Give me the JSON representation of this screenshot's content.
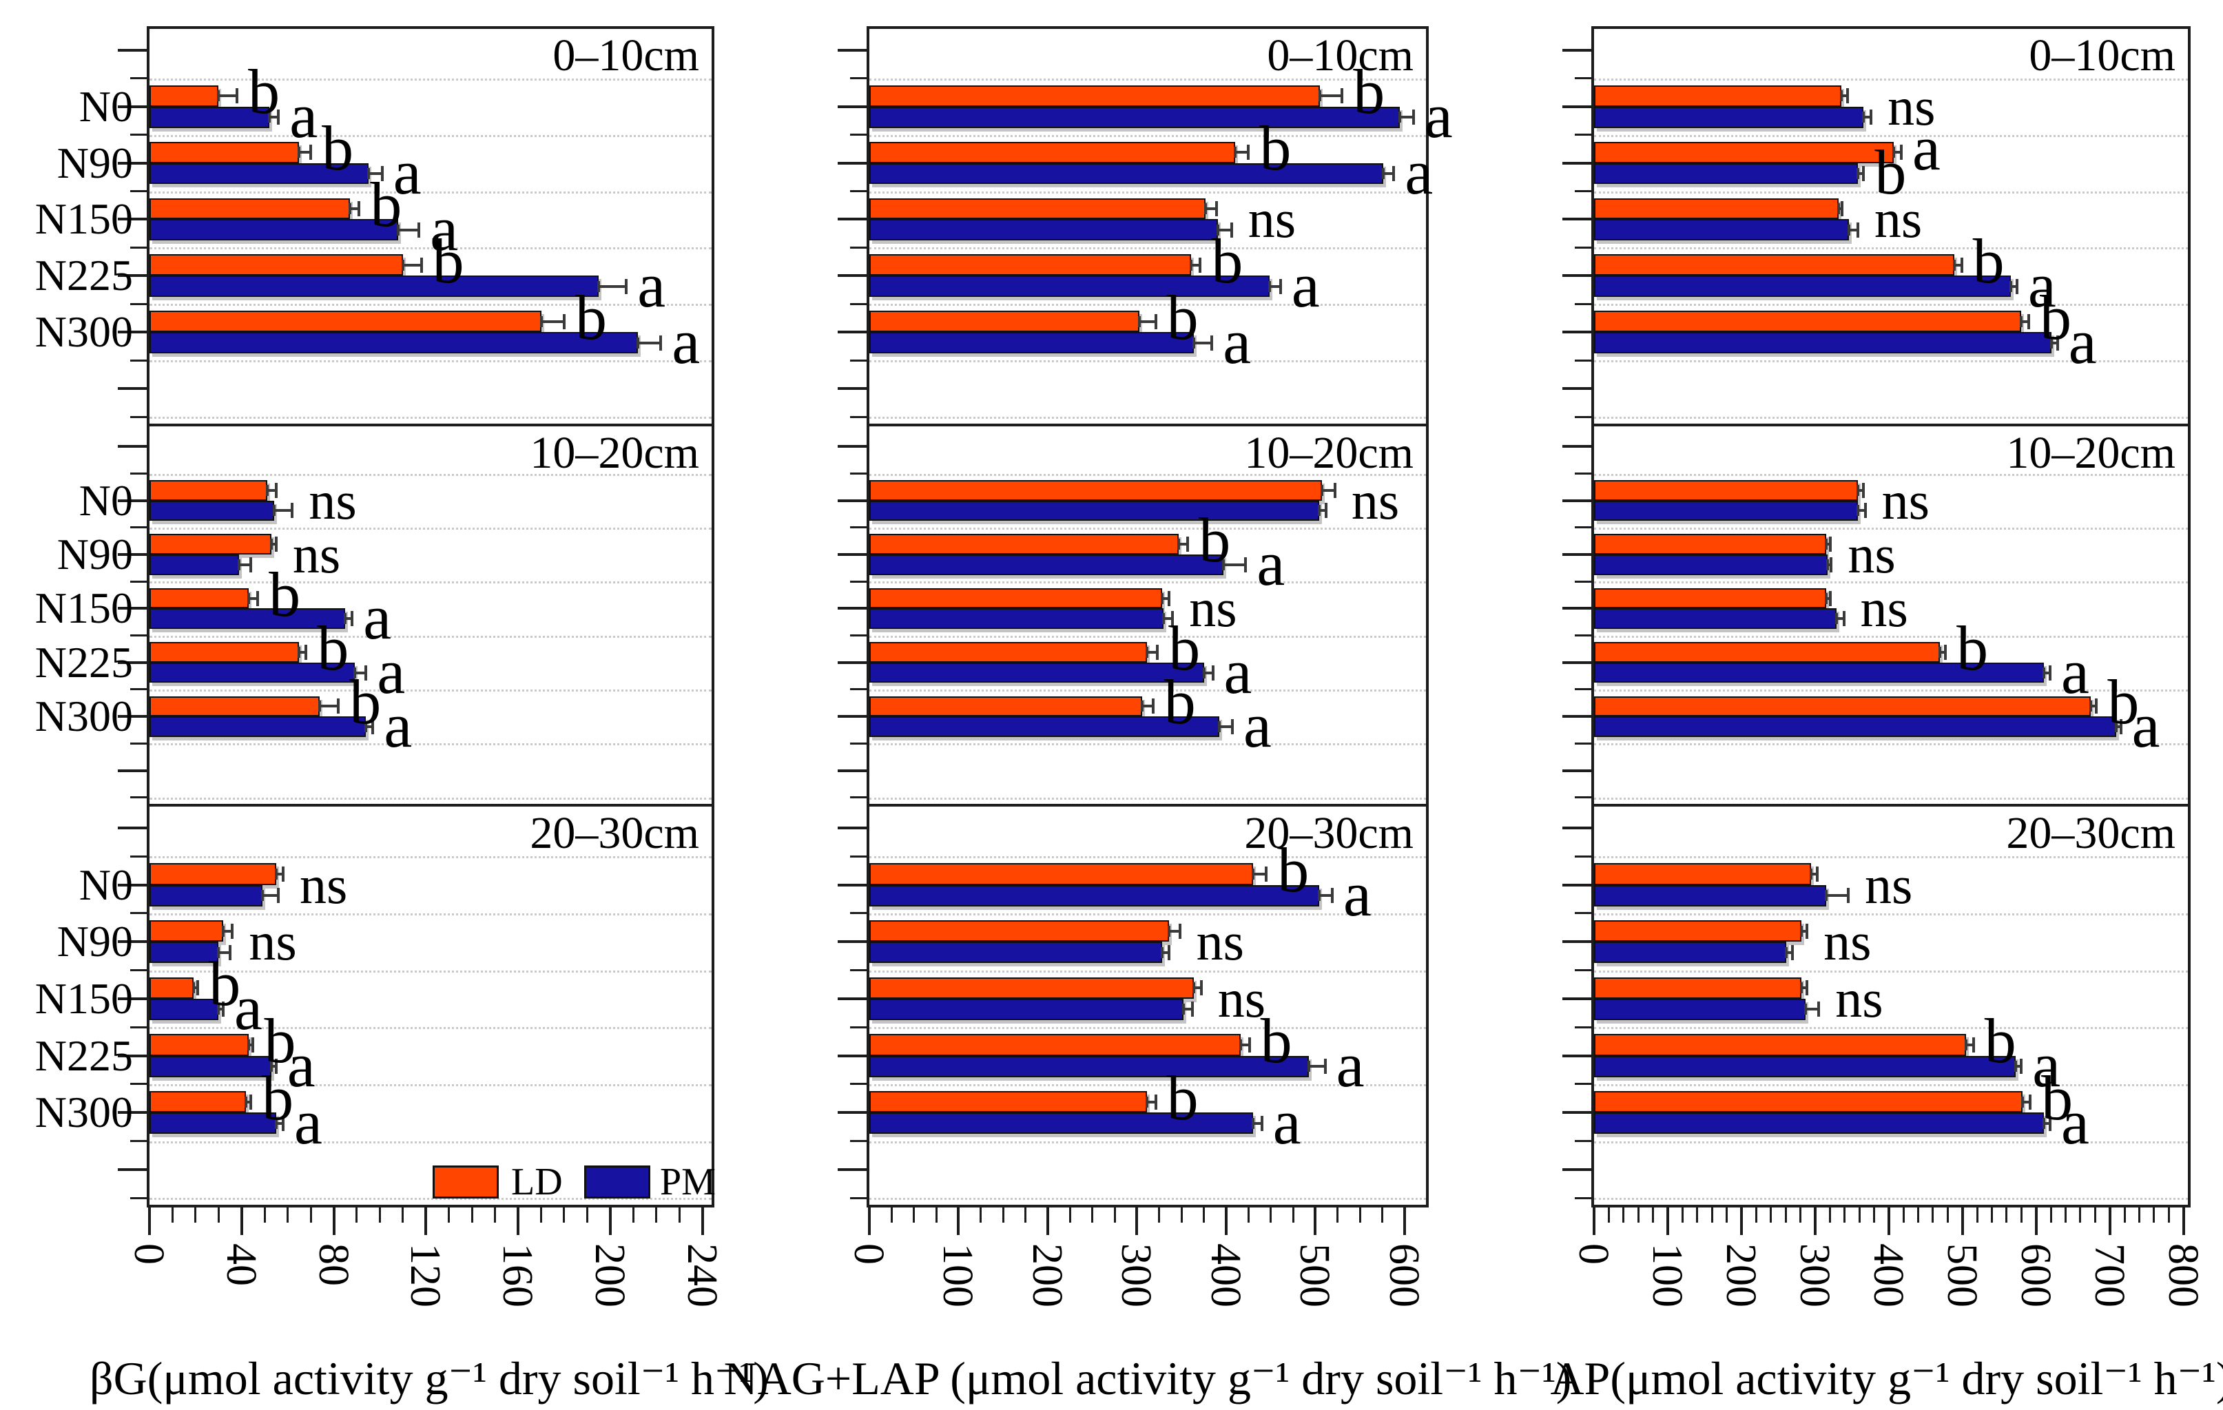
{
  "legend": {
    "items": [
      {
        "label": "LD",
        "color": "#ff4500"
      },
      {
        "label": "PM",
        "color": "#1812a0"
      }
    ]
  },
  "categories": [
    "N0",
    "N90",
    "N150",
    "N225",
    "N300"
  ],
  "depths": [
    "0–10cm",
    "10–20cm",
    "20–30cm"
  ],
  "chart_data": [
    {
      "type": "bar",
      "orientation": "horizontal",
      "enzyme": "βG",
      "xlabel": "βG(μmol activity g⁻¹ dry soil⁻¹ h⁻¹)",
      "xlim": [
        0,
        244
      ],
      "xticks": [
        0,
        40,
        80,
        120,
        160,
        200,
        240
      ],
      "minor_tick_step": 10,
      "series_names": [
        "LD",
        "PM"
      ],
      "panels": [
        {
          "depth": "0–10cm",
          "LD": [
            30,
            65,
            87,
            110,
            170
          ],
          "LD_err": [
            8,
            5,
            4,
            8,
            10
          ],
          "PM": [
            52,
            95,
            108,
            195,
            212
          ],
          "PM_err": [
            4,
            6,
            9,
            12,
            10
          ],
          "letters": [
            "ba",
            "ba",
            "ba",
            "ba",
            "ba"
          ]
        },
        {
          "depth": "10–20cm",
          "LD": [
            51,
            53,
            43,
            65,
            74
          ],
          "LD_err": [
            4,
            2,
            4,
            3,
            8
          ],
          "PM": [
            54,
            39,
            85,
            89,
            94
          ],
          "PM_err": [
            8,
            5,
            3,
            5,
            3
          ],
          "letters": [
            "ns",
            "ns",
            "ba",
            "ba",
            "ba"
          ]
        },
        {
          "depth": "20–30cm",
          "LD": [
            55,
            32,
            19,
            43,
            42
          ],
          "LD_err": [
            3,
            4,
            2,
            2,
            2
          ],
          "PM": [
            49,
            30,
            30,
            53,
            55
          ],
          "PM_err": [
            7,
            5,
            2,
            2,
            3
          ],
          "letters": [
            "ns",
            "ns",
            "ba",
            "ba",
            "ba"
          ]
        }
      ]
    },
    {
      "type": "bar",
      "orientation": "horizontal",
      "enzyme": "NAG+LAP",
      "xlabel": "NAG+LAP (μmol activity g⁻¹ dry soil⁻¹ h⁻¹)",
      "xlim": [
        0,
        624
      ],
      "xticks": [
        0,
        100,
        200,
        300,
        400,
        500,
        600
      ],
      "minor_tick_step": 25,
      "series_names": [
        "LD",
        "PM"
      ],
      "panels": [
        {
          "depth": "0–10cm",
          "LD": [
            505,
            410,
            377,
            361,
            303
          ],
          "LD_err": [
            25,
            15,
            12,
            10,
            18
          ],
          "PM": [
            595,
            576,
            391,
            449,
            364
          ],
          "PM_err": [
            15,
            12,
            15,
            12,
            20
          ],
          "letters": [
            "ba",
            "ba",
            "ns",
            "ba",
            "ba"
          ]
        },
        {
          "depth": "10–20cm",
          "LD": [
            507,
            347,
            328,
            311,
            306
          ],
          "LD_err": [
            15,
            10,
            8,
            12,
            12
          ],
          "PM": [
            504,
            397,
            330,
            375,
            392
          ],
          "PM_err": [
            8,
            25,
            10,
            10,
            15
          ],
          "letters": [
            "ns",
            "ba",
            "ns",
            "ba",
            "ba"
          ]
        },
        {
          "depth": "20–30cm",
          "LD": [
            430,
            336,
            364,
            416,
            311
          ],
          "LD_err": [
            15,
            12,
            8,
            10,
            10
          ],
          "PM": [
            504,
            328,
            352,
            493,
            430
          ],
          "PM_err": [
            15,
            8,
            10,
            18,
            10
          ],
          "letters": [
            "ba",
            "ns",
            "ns",
            "ba",
            "ba"
          ]
        }
      ]
    },
    {
      "type": "bar",
      "orientation": "horizontal",
      "enzyme": "AP",
      "xlabel": "AP(μmol activity g⁻¹ dry soil⁻¹ h⁻¹)",
      "xlim": [
        0,
        806
      ],
      "xticks": [
        0,
        100,
        200,
        300,
        400,
        500,
        600,
        700,
        800
      ],
      "minor_tick_step": 20,
      "series_names": [
        "LD",
        "PM"
      ],
      "panels": [
        {
          "depth": "0–10cm",
          "LD": [
            336,
            407,
            332,
            489,
            580
          ],
          "LD_err": [
            8,
            10,
            5,
            10,
            10
          ],
          "PM": [
            366,
            358,
            346,
            566,
            621
          ],
          "PM_err": [
            10,
            8,
            12,
            8,
            8
          ],
          "letters": [
            "ns",
            "ab",
            "ns",
            "ba",
            "ba"
          ]
        },
        {
          "depth": "10–20cm",
          "LD": [
            358,
            315,
            315,
            469,
            674
          ],
          "LD_err": [
            8,
            6,
            6,
            8,
            8
          ],
          "PM": [
            358,
            317,
            329,
            611,
            709
          ],
          "PM_err": [
            10,
            5,
            10,
            8,
            6
          ],
          "letters": [
            "ns",
            "ns",
            "ns",
            "ba",
            "ba"
          ]
        },
        {
          "depth": "20–30cm",
          "LD": [
            295,
            281,
            281,
            505,
            582
          ],
          "LD_err": [
            8,
            8,
            8,
            10,
            10
          ],
          "PM": [
            315,
            261,
            287,
            572,
            611
          ],
          "PM_err": [
            30,
            8,
            18,
            8,
            8
          ],
          "letters": [
            "ns",
            "ns",
            "ns",
            "ba",
            "ba"
          ]
        }
      ]
    }
  ]
}
